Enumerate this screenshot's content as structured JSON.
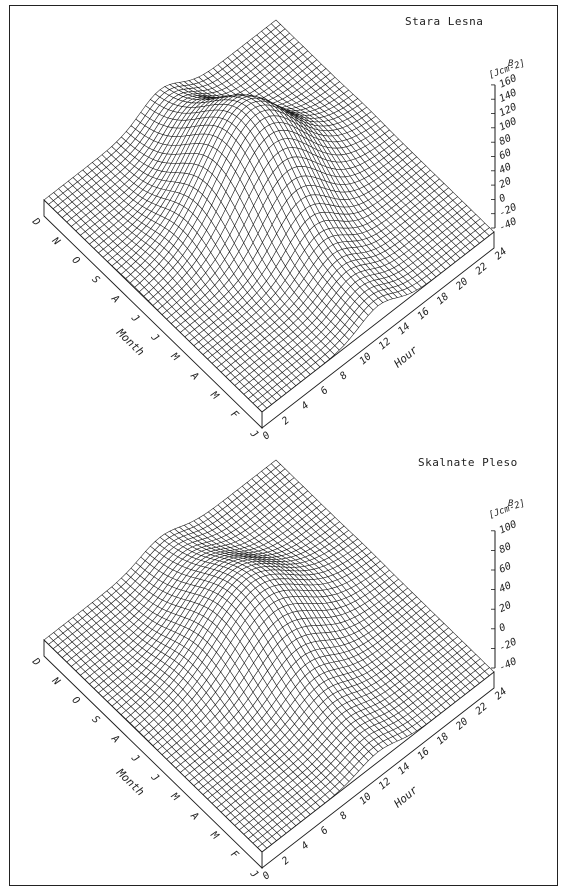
{
  "chart_data": [
    {
      "type": "surface3d",
      "title": "Stara Lesna",
      "xlabel": "Hour",
      "ylabel": "Month",
      "zlabel": "B",
      "zunit": "[Jcm-2]",
      "x_ticks": [
        "0",
        "2",
        "4",
        "6",
        "8",
        "10",
        "12",
        "14",
        "16",
        "18",
        "20",
        "22",
        "24"
      ],
      "y_ticks": [
        "J",
        "F",
        "M",
        "A",
        "M",
        "J",
        "J",
        "A",
        "S",
        "O",
        "N",
        "D"
      ],
      "z_ticks": [
        "-40",
        "-20",
        "0",
        "20",
        "40",
        "60",
        "80",
        "100",
        "120",
        "140",
        "160"
      ],
      "zlim": [
        -40,
        160
      ],
      "peak_value": 160,
      "peak_hour": 12,
      "peak_month": "Jun",
      "grid": true
    },
    {
      "type": "surface3d",
      "title": "Skalnate Pleso",
      "xlabel": "Hour",
      "ylabel": "Month",
      "zlabel": "B",
      "zunit": "[Jcm-2]",
      "x_ticks": [
        "0",
        "2",
        "4",
        "6",
        "8",
        "10",
        "12",
        "14",
        "16",
        "18",
        "20",
        "22",
        "24"
      ],
      "y_ticks": [
        "J",
        "F",
        "M",
        "A",
        "M",
        "J",
        "J",
        "A",
        "S",
        "O",
        "N",
        "D"
      ],
      "z_ticks": [
        "-40",
        "-20",
        "0",
        "20",
        "40",
        "60",
        "80",
        "100"
      ],
      "zlim": [
        -40,
        100
      ],
      "peak_value": 100,
      "peak_hour": 12,
      "peak_month": "Jun",
      "grid": true
    }
  ]
}
